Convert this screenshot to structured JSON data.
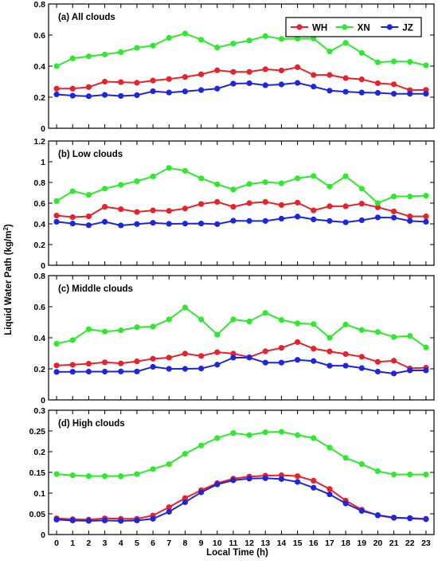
{
  "figure": {
    "ylabel_main": "Liquid Water Path (kg/m",
    "ylabel_sup": "2",
    "ylabel_close": ")",
    "xlabel": "Local Time (h)"
  },
  "legend": {
    "entries": [
      {
        "name": "WH",
        "color": "#e8212a"
      },
      {
        "name": "XN",
        "color": "#2cea2c"
      },
      {
        "name": "JZ",
        "color": "#1c25e0"
      }
    ],
    "placement": "top-right of panel (a)"
  },
  "chart_data": [
    {
      "type": "line",
      "title": "(a) All clouds",
      "x": [
        0,
        1,
        2,
        3,
        4,
        5,
        6,
        7,
        8,
        9,
        10,
        11,
        12,
        13,
        14,
        15,
        16,
        17,
        18,
        19,
        20,
        21,
        22,
        23
      ],
      "xticks": [
        "0",
        "1",
        "2",
        "3",
        "4",
        "5",
        "6",
        "7",
        "8",
        "9",
        "10",
        "11",
        "12",
        "13",
        "14",
        "15",
        "16",
        "17",
        "18",
        "19",
        "20",
        "21",
        "22",
        "23"
      ],
      "ylim": [
        0,
        0.8
      ],
      "yticks": [
        "0",
        "0.2",
        "0.4",
        "0.6",
        "0.8"
      ],
      "ytick_values": [
        0,
        0.2,
        0.4,
        0.6,
        0.8
      ],
      "series": [
        {
          "name": "WH",
          "color": "#e8212a",
          "values": [
            0.255,
            0.255,
            0.265,
            0.3,
            0.297,
            0.293,
            0.307,
            0.317,
            0.33,
            0.347,
            0.373,
            0.363,
            0.363,
            0.38,
            0.372,
            0.393,
            0.343,
            0.343,
            0.323,
            0.315,
            0.29,
            0.283,
            0.245,
            0.247
          ]
        },
        {
          "name": "XN",
          "color": "#2cea2c",
          "values": [
            0.4,
            0.45,
            0.463,
            0.475,
            0.49,
            0.518,
            0.532,
            0.582,
            0.61,
            0.57,
            0.52,
            0.545,
            0.565,
            0.593,
            0.575,
            0.577,
            0.577,
            0.495,
            0.55,
            0.485,
            0.425,
            0.43,
            0.428,
            0.405
          ]
        },
        {
          "name": "JZ",
          "color": "#1c25e0",
          "values": [
            0.218,
            0.21,
            0.206,
            0.215,
            0.208,
            0.213,
            0.238,
            0.23,
            0.237,
            0.246,
            0.255,
            0.287,
            0.29,
            0.277,
            0.282,
            0.292,
            0.268,
            0.242,
            0.235,
            0.23,
            0.228,
            0.222,
            0.222,
            0.222
          ]
        }
      ]
    },
    {
      "type": "line",
      "title": "(b) Low clouds",
      "x": [
        0,
        1,
        2,
        3,
        4,
        5,
        6,
        7,
        8,
        9,
        10,
        11,
        12,
        13,
        14,
        15,
        16,
        17,
        18,
        19,
        20,
        21,
        22,
        23
      ],
      "xticks": [
        "0",
        "1",
        "2",
        "3",
        "4",
        "5",
        "6",
        "7",
        "8",
        "9",
        "10",
        "11",
        "12",
        "13",
        "14",
        "15",
        "16",
        "17",
        "18",
        "19",
        "20",
        "21",
        "22",
        "23"
      ],
      "ylim": [
        0,
        1.2
      ],
      "yticks": [
        "0",
        "0.2",
        "0.4",
        "0.6",
        "0.8",
        "1",
        "1.2"
      ],
      "ytick_values": [
        0,
        0.2,
        0.4,
        0.6,
        0.8,
        1.0,
        1.2
      ],
      "series": [
        {
          "name": "WH",
          "color": "#e8212a",
          "values": [
            0.48,
            0.465,
            0.472,
            0.565,
            0.542,
            0.515,
            0.53,
            0.525,
            0.548,
            0.592,
            0.612,
            0.565,
            0.6,
            0.612,
            0.582,
            0.605,
            0.53,
            0.57,
            0.57,
            0.595,
            0.56,
            0.52,
            0.472,
            0.472
          ]
        },
        {
          "name": "XN",
          "color": "#2cea2c",
          "values": [
            0.62,
            0.715,
            0.68,
            0.74,
            0.777,
            0.812,
            0.858,
            0.94,
            0.912,
            0.84,
            0.782,
            0.732,
            0.785,
            0.803,
            0.792,
            0.84,
            0.862,
            0.76,
            0.86,
            0.74,
            0.6,
            0.665,
            0.665,
            0.672
          ]
        },
        {
          "name": "JZ",
          "color": "#1c25e0",
          "values": [
            0.42,
            0.403,
            0.387,
            0.42,
            0.385,
            0.398,
            0.41,
            0.4,
            0.402,
            0.403,
            0.397,
            0.43,
            0.428,
            0.428,
            0.45,
            0.47,
            0.443,
            0.428,
            0.415,
            0.435,
            0.462,
            0.46,
            0.428,
            0.42
          ]
        }
      ]
    },
    {
      "type": "line",
      "title": "(c) Middle clouds",
      "x": [
        0,
        1,
        2,
        3,
        4,
        5,
        6,
        7,
        8,
        9,
        10,
        11,
        12,
        13,
        14,
        15,
        16,
        17,
        18,
        19,
        20,
        21,
        22,
        23
      ],
      "xticks": [
        "0",
        "1",
        "2",
        "3",
        "4",
        "5",
        "6",
        "7",
        "8",
        "9",
        "10",
        "11",
        "12",
        "13",
        "14",
        "15",
        "16",
        "17",
        "18",
        "19",
        "20",
        "21",
        "22",
        "23"
      ],
      "ylim": [
        0,
        0.8
      ],
      "yticks": [
        "0",
        "0.2",
        "0.4",
        "0.6",
        "0.8"
      ],
      "ytick_values": [
        0,
        0.2,
        0.4,
        0.6,
        0.8
      ],
      "series": [
        {
          "name": "WH",
          "color": "#e8212a",
          "values": [
            0.222,
            0.226,
            0.233,
            0.242,
            0.235,
            0.248,
            0.265,
            0.272,
            0.298,
            0.283,
            0.307,
            0.298,
            0.275,
            0.313,
            0.335,
            0.372,
            0.33,
            0.312,
            0.295,
            0.278,
            0.245,
            0.252,
            0.203,
            0.207
          ]
        },
        {
          "name": "XN",
          "color": "#2cea2c",
          "values": [
            0.362,
            0.385,
            0.455,
            0.44,
            0.448,
            0.468,
            0.472,
            0.518,
            0.595,
            0.518,
            0.42,
            0.518,
            0.505,
            0.56,
            0.515,
            0.493,
            0.488,
            0.4,
            0.485,
            0.45,
            0.437,
            0.405,
            0.412,
            0.338
          ]
        },
        {
          "name": "JZ",
          "color": "#1c25e0",
          "values": [
            0.18,
            0.181,
            0.182,
            0.182,
            0.183,
            0.183,
            0.213,
            0.2,
            0.2,
            0.202,
            0.227,
            0.272,
            0.272,
            0.24,
            0.24,
            0.258,
            0.25,
            0.22,
            0.22,
            0.205,
            0.182,
            0.17,
            0.19,
            0.19
          ]
        }
      ]
    },
    {
      "type": "line",
      "title": "(d) High clouds",
      "x": [
        0,
        1,
        2,
        3,
        4,
        5,
        6,
        7,
        8,
        9,
        10,
        11,
        12,
        13,
        14,
        15,
        16,
        17,
        18,
        19,
        20,
        21,
        22,
        23
      ],
      "xticks": [
        "0",
        "1",
        "2",
        "3",
        "4",
        "5",
        "6",
        "7",
        "8",
        "9",
        "10",
        "11",
        "12",
        "13",
        "14",
        "15",
        "16",
        "17",
        "18",
        "19",
        "20",
        "21",
        "22",
        "23"
      ],
      "ylim": [
        0,
        0.3
      ],
      "yticks": [
        "0",
        "0.05",
        "0.1",
        "0.15",
        "0.2",
        "0.25",
        "0.3"
      ],
      "ytick_values": [
        0,
        0.05,
        0.1,
        0.15,
        0.2,
        0.25,
        0.3
      ],
      "series": [
        {
          "name": "WH",
          "color": "#e8212a",
          "values": [
            0.039,
            0.037,
            0.036,
            0.039,
            0.038,
            0.038,
            0.046,
            0.066,
            0.088,
            0.107,
            0.124,
            0.135,
            0.14,
            0.142,
            0.143,
            0.141,
            0.13,
            0.11,
            0.082,
            0.06,
            0.046,
            0.04,
            0.04,
            0.038
          ]
        },
        {
          "name": "XN",
          "color": "#2cea2c",
          "values": [
            0.146,
            0.143,
            0.141,
            0.141,
            0.141,
            0.146,
            0.158,
            0.17,
            0.195,
            0.215,
            0.233,
            0.245,
            0.24,
            0.247,
            0.248,
            0.24,
            0.233,
            0.21,
            0.185,
            0.17,
            0.153,
            0.145,
            0.145,
            0.145
          ]
        },
        {
          "name": "JZ",
          "color": "#1c25e0",
          "values": [
            0.036,
            0.034,
            0.033,
            0.034,
            0.033,
            0.034,
            0.038,
            0.055,
            0.078,
            0.102,
            0.121,
            0.131,
            0.135,
            0.136,
            0.134,
            0.127,
            0.113,
            0.097,
            0.075,
            0.057,
            0.047,
            0.041,
            0.039,
            0.037
          ]
        }
      ]
    }
  ]
}
